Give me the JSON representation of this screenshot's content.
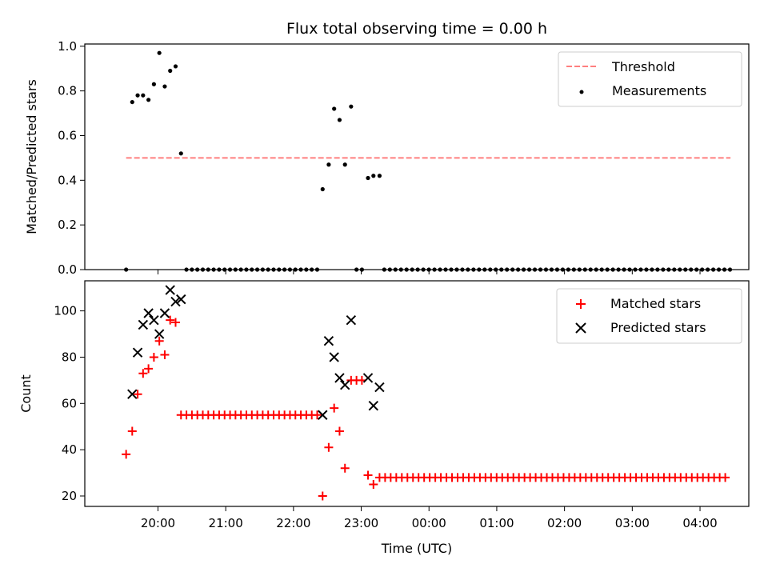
{
  "chart_data": {
    "title": "Flux total observing time = 0.00 h",
    "xlabel": "Time (UTC)",
    "x_tick_labels": [
      "20:00",
      "21:00",
      "22:00",
      "23:00",
      "00:00",
      "01:00",
      "02:00",
      "03:00",
      "04:00"
    ],
    "x_tick_hours": [
      20,
      21,
      22,
      23,
      24,
      25,
      26,
      27,
      28
    ],
    "xlim": [
      18.92,
      28.72
    ],
    "panels": [
      {
        "type": "scatter",
        "ylabel": "Matched/Predicted stars",
        "ylim": [
          0,
          1.01
        ],
        "y_ticks": [
          0.0,
          0.2,
          0.4,
          0.6,
          0.8,
          1.0
        ],
        "y_tick_labels": [
          "0.0",
          "0.2",
          "0.4",
          "0.6",
          "0.8",
          "1.0"
        ],
        "legend_position": "upper right",
        "threshold": {
          "name": "Threshold",
          "value": 0.5,
          "x_range": [
            19.53,
            28.45
          ],
          "color": "#ff7f7f",
          "style": "dashed"
        },
        "series": [
          {
            "name": "Measurements",
            "color": "#000000",
            "marker": "dot",
            "points": [
              [
                19.53,
                0.0
              ],
              [
                19.62,
                0.75
              ],
              [
                19.7,
                0.78
              ],
              [
                19.78,
                0.78
              ],
              [
                19.86,
                0.76
              ],
              [
                19.94,
                0.83
              ],
              [
                20.02,
                0.97
              ],
              [
                20.1,
                0.82
              ],
              [
                20.18,
                0.89
              ],
              [
                20.26,
                0.91
              ],
              [
                20.34,
                0.52
              ],
              [
                22.43,
                0.36
              ],
              [
                22.52,
                0.47
              ],
              [
                22.6,
                0.72
              ],
              [
                22.68,
                0.67
              ],
              [
                22.76,
                0.47
              ],
              [
                22.85,
                0.73
              ],
              [
                23.1,
                0.41
              ],
              [
                23.18,
                0.42
              ],
              [
                23.27,
                0.42
              ]
            ],
            "zero_runs": [
              {
                "from": 20.42,
                "to": 22.35,
                "step": 0.0804
              },
              {
                "from": 22.93,
                "to": 23.01,
                "step": 0.08
              },
              {
                "from": 23.34,
                "to": 28.45,
                "step": 0.0823
              }
            ]
          }
        ]
      },
      {
        "type": "scatter",
        "ylabel": "Count",
        "ylim": [
          15.5,
          113
        ],
        "y_ticks": [
          20,
          40,
          60,
          80,
          100
        ],
        "y_tick_labels": [
          "20",
          "40",
          "60",
          "80",
          "100"
        ],
        "legend_position": "upper right",
        "series": [
          {
            "name": "Matched stars",
            "color": "#ff0000",
            "marker": "plus",
            "points": [
              [
                19.53,
                38
              ],
              [
                19.62,
                48
              ],
              [
                19.7,
                64
              ],
              [
                19.78,
                73
              ],
              [
                19.86,
                75
              ],
              [
                19.94,
                80
              ],
              [
                20.02,
                87
              ],
              [
                20.1,
                81
              ],
              [
                20.18,
                96
              ],
              [
                20.26,
                95
              ],
              [
                22.43,
                20
              ],
              [
                22.52,
                41
              ],
              [
                22.6,
                58
              ],
              [
                22.68,
                48
              ],
              [
                22.76,
                32
              ],
              [
                22.85,
                70
              ],
              [
                22.93,
                70
              ],
              [
                23.01,
                70
              ],
              [
                23.1,
                29
              ],
              [
                23.18,
                25
              ]
            ],
            "constant_runs": [
              {
                "from": 20.34,
                "to": 22.35,
                "step": 0.0804,
                "value": 55
              },
              {
                "from": 23.27,
                "to": 28.45,
                "step": 0.0823,
                "value": 28
              }
            ]
          },
          {
            "name": "Predicted stars",
            "color": "#000000",
            "marker": "x",
            "points": [
              [
                19.62,
                64
              ],
              [
                19.7,
                82
              ],
              [
                19.78,
                94
              ],
              [
                19.86,
                99
              ],
              [
                19.94,
                96
              ],
              [
                20.02,
                90
              ],
              [
                20.1,
                99
              ],
              [
                20.18,
                109
              ],
              [
                20.26,
                104
              ],
              [
                20.34,
                105
              ],
              [
                22.43,
                55
              ],
              [
                22.52,
                87
              ],
              [
                22.6,
                80
              ],
              [
                22.68,
                71
              ],
              [
                22.76,
                68
              ],
              [
                22.85,
                96
              ],
              [
                23.1,
                71
              ],
              [
                23.18,
                59
              ],
              [
                23.27,
                67
              ]
            ]
          }
        ]
      }
    ]
  }
}
